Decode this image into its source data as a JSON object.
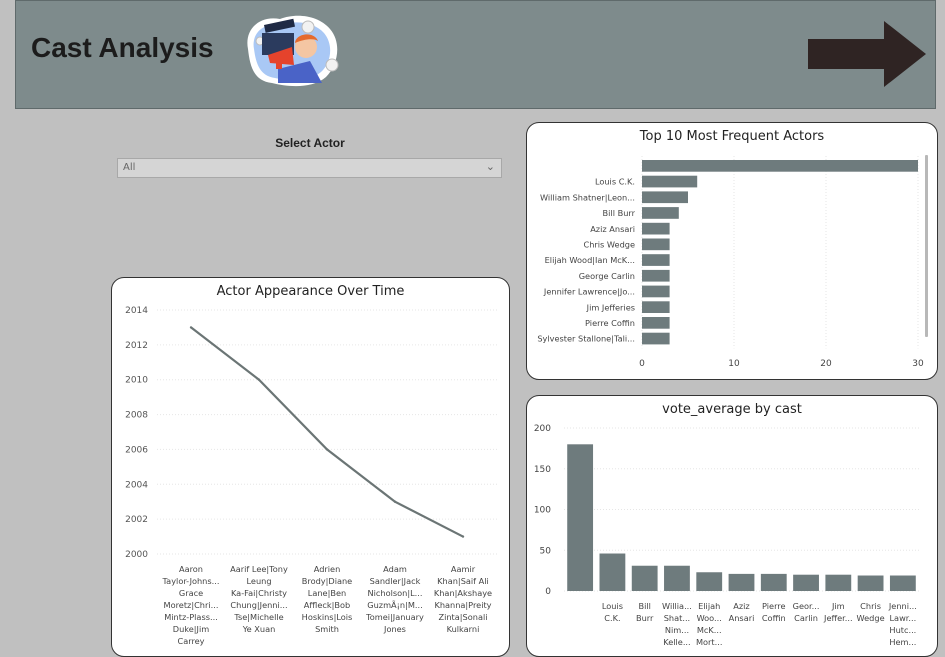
{
  "header": {
    "title": "Cast Analysis",
    "logo_icon": "megaphone-clapperboard-icon",
    "nav_icon": "arrow-right-icon",
    "background": "#7e8b8c",
    "arrow_color": "#2f2423"
  },
  "slicer": {
    "title": "Select Actor",
    "value": "All"
  },
  "bar_color": "#6e7b7d",
  "chart_data": [
    {
      "type": "line",
      "title": "Actor Appearance Over Time",
      "x": [
        [
          "Aaron",
          "Taylor-Johns...",
          "Grace",
          "Moretz|Chri...",
          "Mintz-Plass...",
          "Duke|Jim",
          "Carrey"
        ],
        [
          "Aarif Lee|Tony",
          "Leung",
          "Ka-Fai|Christy",
          "Chung|Jenni...",
          "Tse|Michelle",
          "Ye Xuan"
        ],
        [
          "Adrien",
          "Brody|Diane",
          "Lane|Ben",
          "Affleck|Bob",
          "Hoskins|Lois",
          "Smith"
        ],
        [
          "Adam",
          "Sandler|Jack",
          "Nicholson|L...",
          "GuzmÃ¡n|M...",
          "Tomei|January",
          "Jones"
        ],
        [
          "Aamir",
          "Khan|Saif Ali",
          "Khan|Akshaye",
          "Khanna|Preity",
          "Zinta|Sonali",
          "Kulkarni"
        ]
      ],
      "values": [
        2013,
        2010,
        2006,
        2003,
        2001
      ],
      "ylim": [
        2000,
        2014
      ],
      "yticks": [
        "2014",
        "2012",
        "2010",
        "2008",
        "2006",
        "2004",
        "2002",
        "2000"
      ],
      "grid": true
    },
    {
      "type": "bar",
      "orientation": "horizontal",
      "title": "Top 10 Most Frequent Actors",
      "categories": [
        "",
        "Louis C.K.",
        "William Shatner|Leon...",
        "Bill Burr",
        "Aziz Ansari",
        "Chris Wedge",
        "Elijah Wood|Ian McK...",
        "George Carlin",
        "Jennifer Lawrence|Jo...",
        "Jim Jefferies",
        "Pierre Coffin",
        "Sylvester Stallone|Tali..."
      ],
      "values": [
        30,
        6,
        5,
        4,
        3,
        3,
        3,
        3,
        3,
        3,
        3,
        3
      ],
      "xlim": [
        0,
        30
      ],
      "xticks": [
        "0",
        "10",
        "20",
        "30"
      ],
      "grid": true
    },
    {
      "type": "bar",
      "title": "vote_average by cast",
      "categories": [
        [
          ""
        ],
        [
          "Louis",
          "C.K."
        ],
        [
          "Bill",
          "Burr"
        ],
        [
          "Willia...",
          "Shat...",
          "Nim...",
          "Kelle..."
        ],
        [
          "Elijah",
          "Woo...",
          "McK...",
          "Mort..."
        ],
        [
          "Aziz",
          "Ansari"
        ],
        [
          "Pierre",
          "Coffin"
        ],
        [
          "Geor...",
          "Carlin"
        ],
        [
          "Jim",
          "Jeffer..."
        ],
        [
          "Chris",
          "Wedge"
        ],
        [
          "Jenni...",
          "Lawr...",
          "Hutc...",
          "Hem..."
        ]
      ],
      "values": [
        180,
        46,
        31,
        31,
        23,
        21,
        21,
        20,
        20,
        19,
        19
      ],
      "ylim": [
        0,
        200
      ],
      "yticks": [
        "200",
        "150",
        "100",
        "50",
        "0"
      ],
      "grid": true
    }
  ]
}
